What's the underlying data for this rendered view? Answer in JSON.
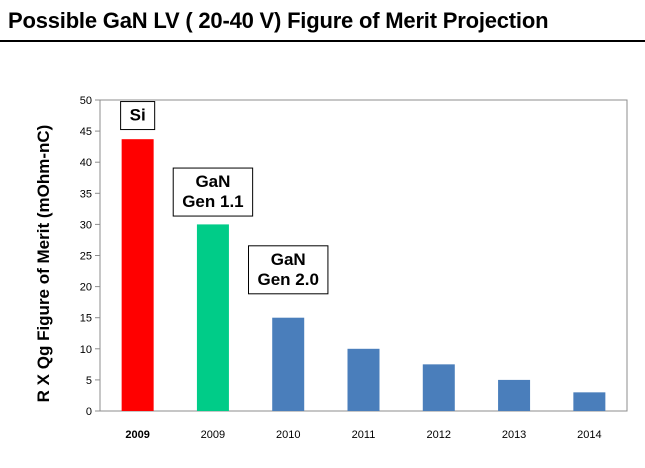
{
  "page": {
    "title": "Possible GaN LV ( 20-40 V) Figure of Merit Projection"
  },
  "chart_data": {
    "type": "bar",
    "categories": [
      "2009",
      "2009",
      "2010",
      "2011",
      "2012",
      "2013",
      "2014"
    ],
    "values": [
      43.7,
      30,
      15,
      10,
      7.5,
      5,
      3
    ],
    "bar_colors": [
      "#ff0000",
      "#00cc88",
      "#4a7ebb",
      "#4a7ebb",
      "#4a7ebb",
      "#4a7ebb",
      "#4a7ebb"
    ],
    "first_category_bold": true,
    "ylabel": "R X Qg Figure of Merit (mOhm-nC)",
    "ylim": [
      0,
      50
    ],
    "yticks": [
      0,
      5,
      10,
      15,
      20,
      25,
      30,
      35,
      40,
      45,
      50
    ],
    "grid": false,
    "annotations": [
      {
        "lines": [
          "Si"
        ],
        "category_index": 0,
        "value": 47.5
      },
      {
        "lines": [
          "GaN",
          "Gen 1.1"
        ],
        "category_index": 1,
        "value": 35.2
      },
      {
        "lines": [
          "GaN",
          "Gen 2.0"
        ],
        "category_index": 2,
        "value": 22.7
      }
    ]
  }
}
